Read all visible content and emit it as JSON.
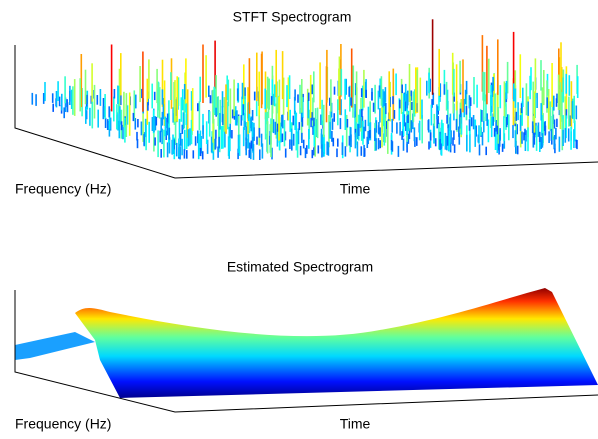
{
  "chart_data": [
    {
      "type": "surface",
      "title": "STFT Spectrogram",
      "xlabel": "Time",
      "ylabel": "Frequency (Hz)"
    },
    {
      "type": "surface",
      "title": "Estimated Spectrogram",
      "xlabel": "Time",
      "ylabel": "Frequency (Hz)"
    }
  ]
}
